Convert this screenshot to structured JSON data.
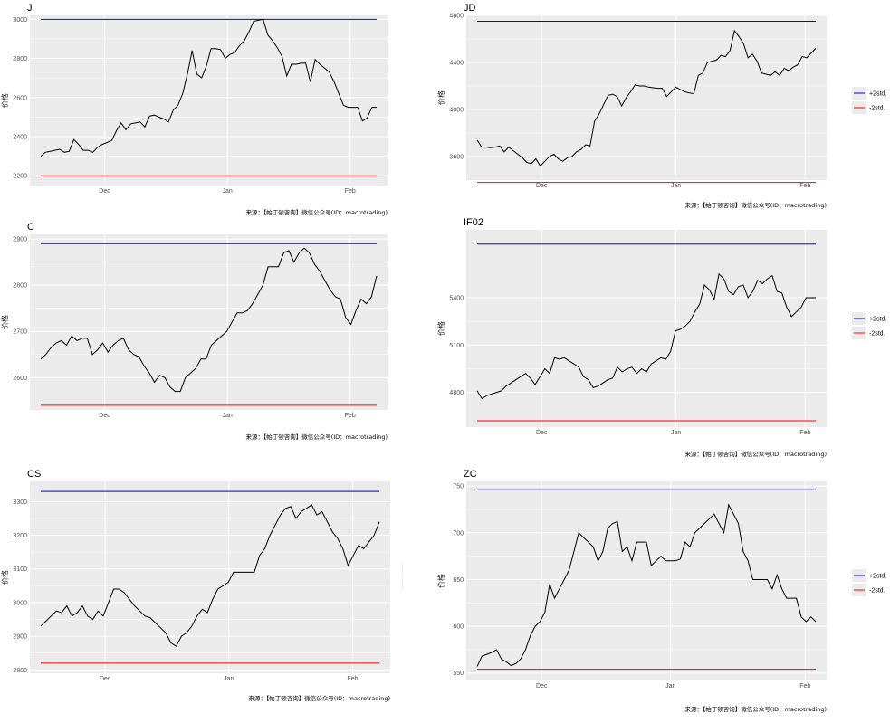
{
  "source": "来源：【帕丁顿咨询】微信公众号(ID：macrotrading)",
  "ylabel": "价格",
  "legend": [
    {
      "label": "+2std.",
      "color": "#0000ff"
    },
    {
      "label": "-2std.",
      "color": "#ff0000"
    }
  ],
  "colors": {
    "panel": "#ebebeb",
    "grid": "#ffffff",
    "series": "#000000"
  },
  "chart_data": [
    {
      "type": "line",
      "title": "J",
      "xlabel": "",
      "ylabel": "价格",
      "x_range": [
        0,
        67
      ],
      "ylim": [
        2150,
        3020
      ],
      "yticks": [
        2200,
        2400,
        2600,
        2800,
        3000
      ],
      "xticks": [
        {
          "x": 14,
          "label": "Dec"
        },
        {
          "x": 37,
          "label": "Jan"
        },
        {
          "x": 60,
          "label": "Feb"
        }
      ],
      "upper": 3000,
      "lower": 2200,
      "values": [
        2300,
        2320,
        2325,
        2330,
        2335,
        2320,
        2325,
        2385,
        2360,
        2330,
        2330,
        2320,
        2345,
        2360,
        2370,
        2380,
        2430,
        2470,
        2435,
        2465,
        2470,
        2475,
        2450,
        2505,
        2510,
        2500,
        2490,
        2475,
        2535,
        2560,
        2620,
        2720,
        2840,
        2720,
        2700,
        2760,
        2850,
        2850,
        2845,
        2800,
        2820,
        2830,
        2865,
        2890,
        2935,
        2990,
        2995,
        3000,
        2920,
        2890,
        2855,
        2810,
        2710,
        2770,
        2770,
        2775,
        2775,
        2680,
        2795,
        2770,
        2750,
        2730,
        2680,
        2620,
        2560,
        2550,
        2550,
        2550,
        2480,
        2495,
        2550,
        2550
      ],
      "legend": "right"
    },
    {
      "type": "line",
      "title": "JD",
      "xlabel": "",
      "ylabel": "价格",
      "x_range": [
        0,
        67
      ],
      "ylim": [
        3400,
        4800
      ],
      "yticks": [
        3600,
        4000,
        4400,
        4800
      ],
      "xticks": [
        {
          "x": 14,
          "label": "Dec"
        },
        {
          "x": 39,
          "label": "Jan"
        },
        {
          "x": 63,
          "label": "Feb"
        }
      ],
      "upper": 4750,
      "lower": 3380,
      "values": [
        3740,
        3680,
        3680,
        3675,
        3680,
        3690,
        3640,
        3680,
        3650,
        3620,
        3590,
        3550,
        3540,
        3580,
        3520,
        3560,
        3600,
        3620,
        3580,
        3560,
        3590,
        3600,
        3640,
        3660,
        3700,
        3690,
        3900,
        3960,
        4040,
        4120,
        4130,
        4110,
        4030,
        4100,
        4150,
        4210,
        4200,
        4200,
        4190,
        4185,
        4180,
        4180,
        4110,
        4150,
        4190,
        4170,
        4150,
        4140,
        4135,
        4290,
        4310,
        4400,
        4410,
        4420,
        4460,
        4450,
        4500,
        4670,
        4620,
        4560,
        4440,
        4470,
        4410,
        4310,
        4300,
        4290,
        4320,
        4290,
        4350,
        4330,
        4360,
        4380,
        4450,
        4440,
        4480,
        4520
      ],
      "legend": "right"
    },
    {
      "type": "line",
      "title": "C",
      "xlabel": "",
      "ylabel": "价格",
      "x_range": [
        0,
        67
      ],
      "ylim": [
        2530,
        2910
      ],
      "yticks": [
        2600,
        2700,
        2800,
        2900
      ],
      "xticks": [
        {
          "x": 14,
          "label": "Dec"
        },
        {
          "x": 37,
          "label": "Jan"
        },
        {
          "x": 60,
          "label": "Feb"
        }
      ],
      "upper": 2890,
      "lower": 2540,
      "values": [
        2640,
        2650,
        2665,
        2675,
        2680,
        2670,
        2690,
        2680,
        2685,
        2685,
        2650,
        2660,
        2675,
        2655,
        2670,
        2680,
        2685,
        2660,
        2650,
        2645,
        2625,
        2610,
        2590,
        2605,
        2600,
        2580,
        2570,
        2570,
        2600,
        2610,
        2620,
        2640,
        2640,
        2670,
        2680,
        2690,
        2700,
        2720,
        2740,
        2740,
        2745,
        2760,
        2780,
        2800,
        2840,
        2840,
        2840,
        2870,
        2875,
        2850,
        2870,
        2880,
        2870,
        2845,
        2830,
        2810,
        2790,
        2775,
        2770,
        2730,
        2715,
        2745,
        2770,
        2760,
        2775,
        2820
      ],
      "legend": "right"
    },
    {
      "type": "line",
      "title": "IF02",
      "xlabel": "",
      "ylabel": "价格",
      "x_range": [
        0,
        67
      ],
      "ylim": [
        4580,
        5830
      ],
      "yticks": [
        4800,
        5100,
        5400
      ],
      "xticks": [
        {
          "x": 14,
          "label": "Dec"
        },
        {
          "x": 39,
          "label": "Jan"
        },
        {
          "x": 63,
          "label": "Feb"
        }
      ],
      "upper": 5740,
      "lower": 4620,
      "values": [
        4810,
        4760,
        4780,
        4790,
        4800,
        4810,
        4840,
        4860,
        4880,
        4900,
        4920,
        4890,
        4850,
        4900,
        4950,
        4920,
        5020,
        5010,
        5020,
        5000,
        4980,
        4960,
        4900,
        4880,
        4830,
        4840,
        4860,
        4880,
        4890,
        4960,
        4930,
        4950,
        4960,
        4920,
        4950,
        4930,
        4980,
        5000,
        5020,
        5010,
        5060,
        5190,
        5200,
        5220,
        5250,
        5310,
        5360,
        5480,
        5450,
        5390,
        5550,
        5520,
        5440,
        5420,
        5470,
        5480,
        5400,
        5440,
        5510,
        5490,
        5520,
        5540,
        5440,
        5430,
        5340,
        5280,
        5310,
        5340,
        5400,
        5400,
        5400
      ],
      "legend": "right"
    },
    {
      "type": "line",
      "title": "CS",
      "xlabel": "",
      "ylabel": "价格",
      "x_range": [
        0,
        67
      ],
      "ylim": [
        2790,
        3360
      ],
      "yticks": [
        2800,
        2900,
        3000,
        3100,
        3200,
        3300
      ],
      "xticks": [
        {
          "x": 14,
          "label": "Dec"
        },
        {
          "x": 37,
          "label": "Jan"
        },
        {
          "x": 60,
          "label": "Feb"
        }
      ],
      "upper": 3330,
      "lower": 2820,
      "values": [
        2930,
        2945,
        2960,
        2975,
        2970,
        2990,
        2960,
        2970,
        2990,
        2960,
        2950,
        2975,
        2960,
        3000,
        3040,
        3040,
        3030,
        3010,
        2990,
        2975,
        2960,
        2955,
        2940,
        2925,
        2910,
        2880,
        2870,
        2900,
        2910,
        2930,
        2960,
        2980,
        2970,
        3010,
        3040,
        3050,
        3060,
        3090,
        3090,
        3090,
        3090,
        3090,
        3140,
        3160,
        3200,
        3230,
        3260,
        3280,
        3285,
        3250,
        3270,
        3280,
        3290,
        3260,
        3270,
        3240,
        3210,
        3190,
        3160,
        3110,
        3140,
        3170,
        3160,
        3180,
        3200,
        3240
      ],
      "legend": "right"
    },
    {
      "type": "line",
      "title": "ZC",
      "xlabel": "",
      "ylabel": "价格",
      "x_range": [
        0,
        67
      ],
      "ylim": [
        542,
        755
      ],
      "yticks": [
        550,
        600,
        650,
        700,
        750
      ],
      "xticks": [
        {
          "x": 14,
          "label": "Dec"
        },
        {
          "x": 38,
          "label": "Jan"
        },
        {
          "x": 63,
          "label": "Feb"
        }
      ],
      "upper": 746,
      "lower": 554,
      "values": [
        557,
        568,
        570,
        572,
        575,
        565,
        562,
        558,
        560,
        565,
        575,
        590,
        600,
        605,
        615,
        645,
        630,
        640,
        650,
        660,
        680,
        700,
        695,
        690,
        685,
        670,
        680,
        705,
        710,
        712,
        680,
        685,
        670,
        690,
        690,
        690,
        665,
        670,
        675,
        670,
        670,
        670,
        672,
        690,
        685,
        700,
        705,
        710,
        715,
        720,
        710,
        700,
        730,
        720,
        710,
        680,
        670,
        650,
        650,
        650,
        650,
        640,
        655,
        640,
        630,
        630,
        630,
        610,
        605,
        610,
        605
      ],
      "legend": "right"
    }
  ]
}
